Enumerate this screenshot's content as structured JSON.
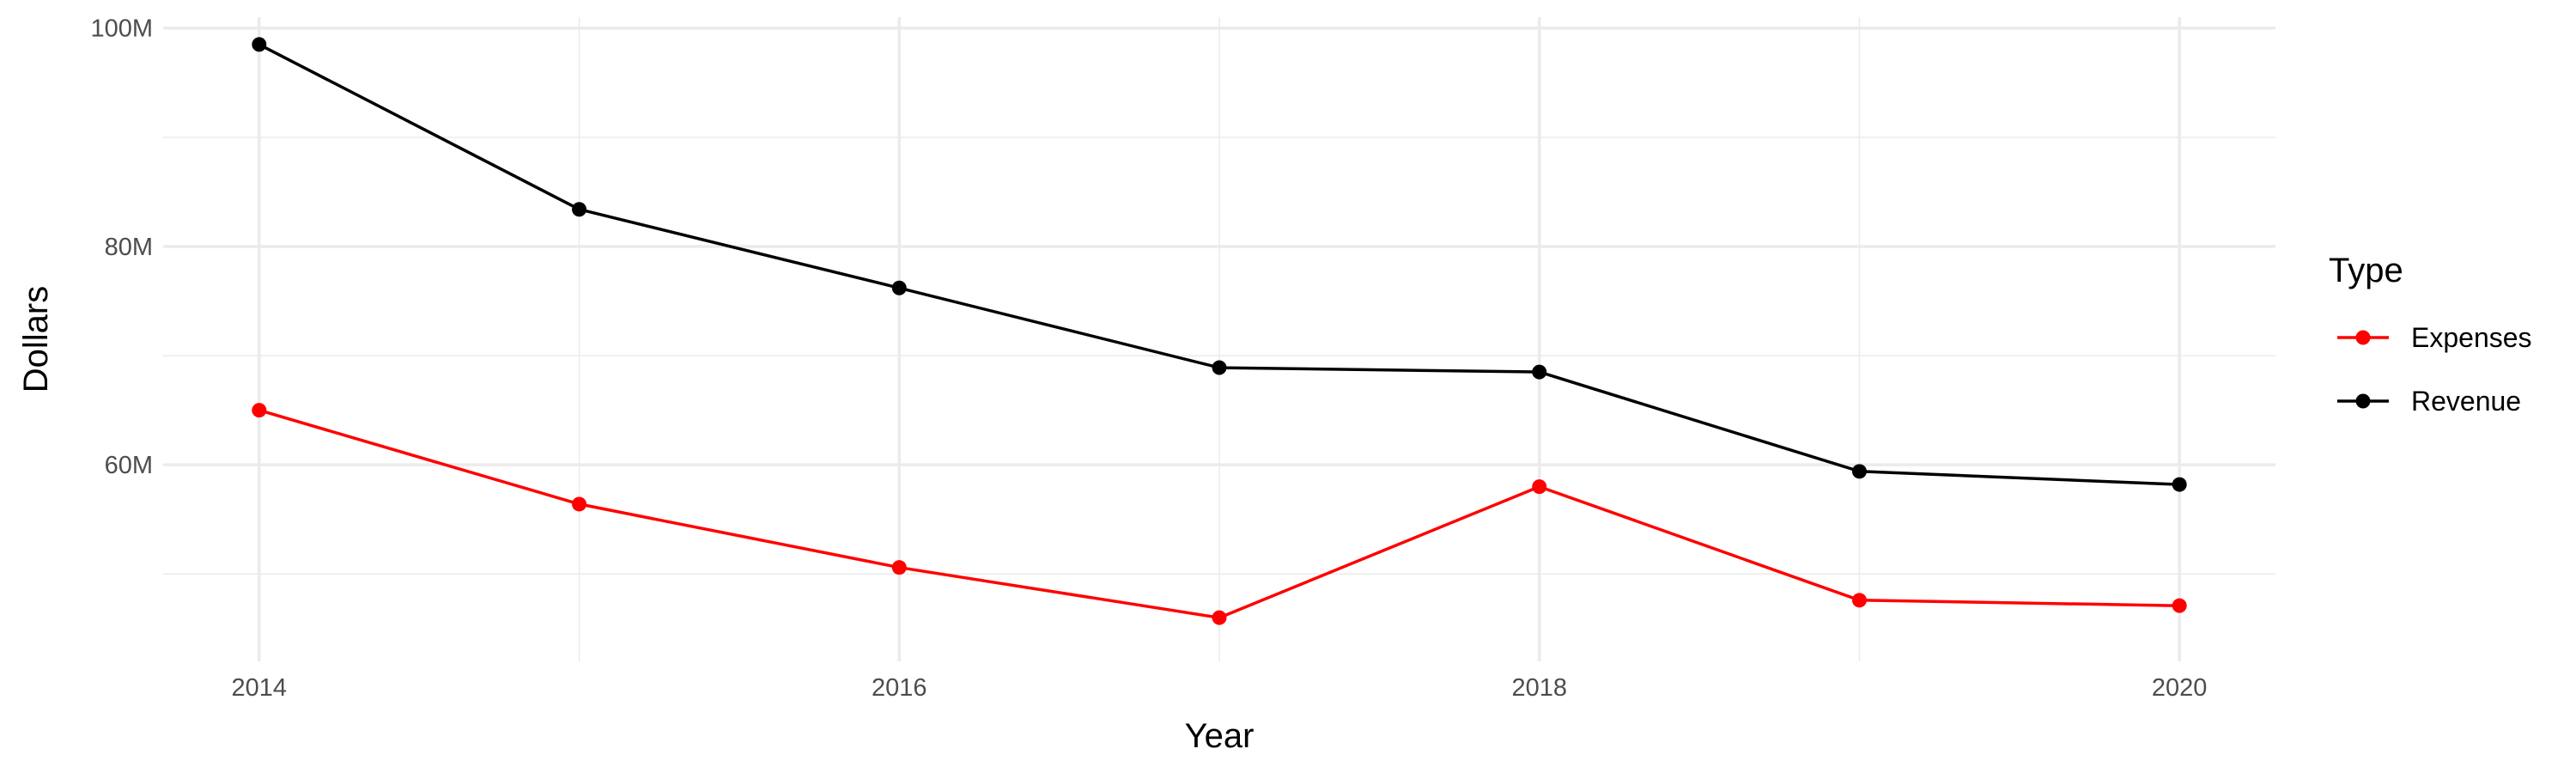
{
  "chart_data": {
    "type": "line",
    "xlabel": "Year",
    "ylabel": "Dollars",
    "x": [
      2014,
      2015,
      2016,
      2017,
      2018,
      2019,
      2020
    ],
    "x_ticks": [
      "2014",
      "2016",
      "2018",
      "2020"
    ],
    "y_ticks": [
      "60M",
      "80M",
      "100M"
    ],
    "xlim": [
      2013.7,
      2020.3
    ],
    "ylim": [
      42,
      101
    ],
    "grid": true,
    "legend": {
      "title": "Type",
      "position": "right",
      "entries": [
        "Expenses",
        "Revenue"
      ]
    },
    "series": [
      {
        "name": "Expenses",
        "color": "#ff0000",
        "values": [
          65.0,
          56.4,
          50.6,
          46.0,
          58.0,
          47.6,
          47.1
        ]
      },
      {
        "name": "Revenue",
        "color": "#000000",
        "values": [
          98.5,
          83.4,
          76.2,
          68.9,
          68.5,
          59.4,
          58.2
        ]
      }
    ]
  }
}
